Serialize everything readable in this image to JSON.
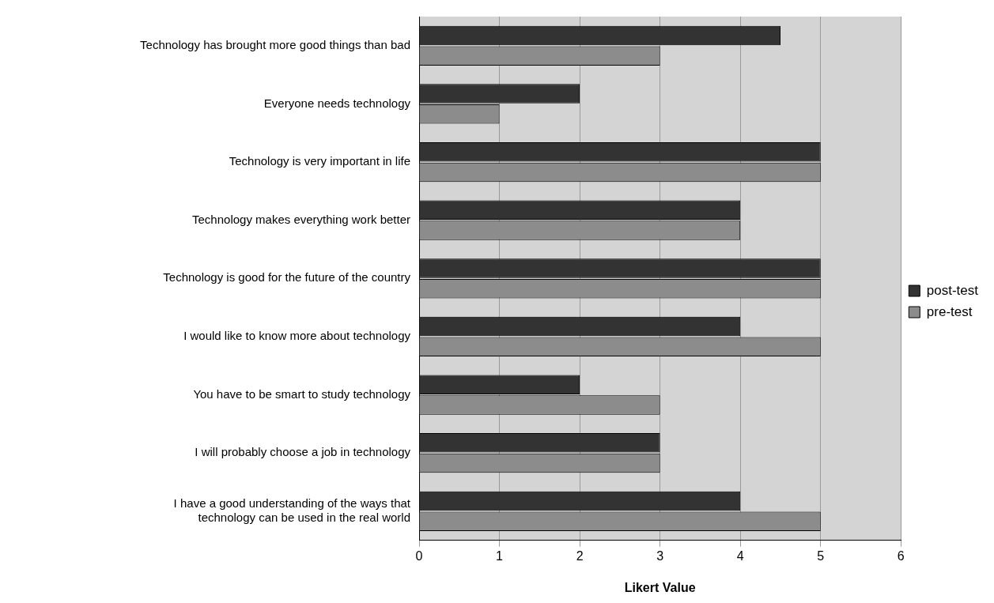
{
  "chart_data": {
    "type": "bar",
    "orientation": "horizontal",
    "xlabel": "Likert Value",
    "categories": [
      "Technology has brought more good things than bad",
      "Everyone needs technology",
      "Technology is very important in life",
      "Technology makes everything work better",
      "Technology is good for the future of the country",
      "I would like to know more about technology",
      "You have to be smart to study technology",
      "I will probably choose a job in technology",
      "I have a good understanding of the ways that technology can be used in the real world"
    ],
    "series": [
      {
        "name": "post-test",
        "color": "#333333",
        "values": [
          4.5,
          2,
          5,
          4,
          5,
          4,
          2,
          3,
          4
        ]
      },
      {
        "name": "pre-test",
        "color": "#8c8c8c",
        "values": [
          3,
          1,
          5,
          4,
          5,
          5,
          3,
          3,
          5
        ]
      }
    ],
    "xlim": [
      0,
      6
    ],
    "xticks": [
      0,
      1,
      2,
      3,
      4,
      5,
      6
    ],
    "grid": "x",
    "legend": "right"
  }
}
